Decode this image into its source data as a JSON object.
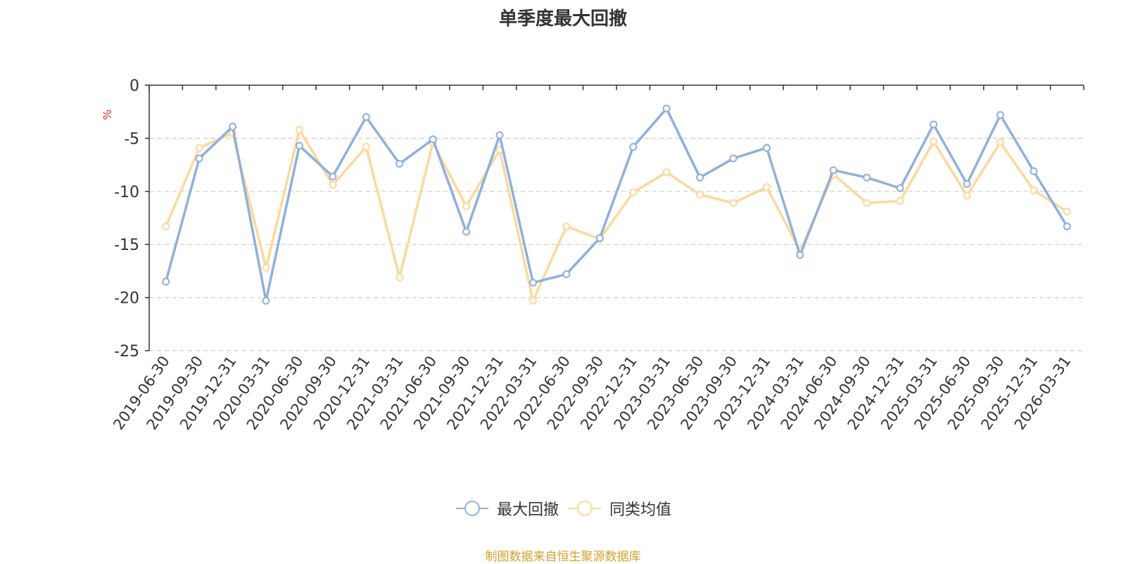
{
  "chart_data": {
    "type": "line",
    "title": "单季度最大回撤",
    "ylabel": "%",
    "ylim": [
      -25,
      0
    ],
    "yticks": [
      0,
      -5,
      -10,
      -15,
      -20,
      -25
    ],
    "grid": true,
    "legend_position": "bottom",
    "categories": [
      "2019-06-30",
      "2019-09-30",
      "2019-12-31",
      "2020-03-31",
      "2020-06-30",
      "2020-09-30",
      "2020-12-31",
      "2021-03-31",
      "2021-06-30",
      "2021-09-30",
      "2021-12-31",
      "2022-03-31",
      "2022-06-30",
      "2022-09-30",
      "2022-12-31",
      "2023-03-31",
      "2023-06-30",
      "2023-09-30",
      "2023-12-31",
      "2024-03-31",
      "2024-06-30",
      "2024-09-30",
      "2024-12-31",
      "2025-03-31",
      "2025-06-30",
      "2025-09-30",
      "2025-12-31",
      "2026-03-31"
    ],
    "series": [
      {
        "name": "最大回撤",
        "color": "#8fb0dc",
        "values": [
          -18.5,
          -6.9,
          -3.9,
          -20.3,
          -5.7,
          -8.6,
          -3.0,
          -7.4,
          -5.1,
          -13.8,
          -4.7,
          -18.6,
          -17.8,
          -14.4,
          -5.8,
          -2.2,
          -8.7,
          -6.9,
          -5.9,
          -16.0,
          -8.0,
          -8.7,
          -9.7,
          -3.7,
          -9.3,
          -2.8,
          -8.1,
          -13.3
        ]
      },
      {
        "name": "同类均值",
        "color": "#fcd99a",
        "values": [
          -13.3,
          -5.9,
          -4.5,
          -17.2,
          -4.2,
          -9.4,
          -5.8,
          -18.1,
          -5.4,
          -11.4,
          -6.1,
          -20.3,
          -13.3,
          -14.5,
          -10.1,
          -8.2,
          -10.3,
          -11.1,
          -9.6,
          -15.6,
          -8.4,
          -11.1,
          -10.9,
          -5.3,
          -10.4,
          -5.4,
          -9.9,
          -11.9
        ]
      }
    ]
  },
  "source": {
    "text": "制图数据来自恒生聚源数据库",
    "color": "#d4a02a"
  }
}
